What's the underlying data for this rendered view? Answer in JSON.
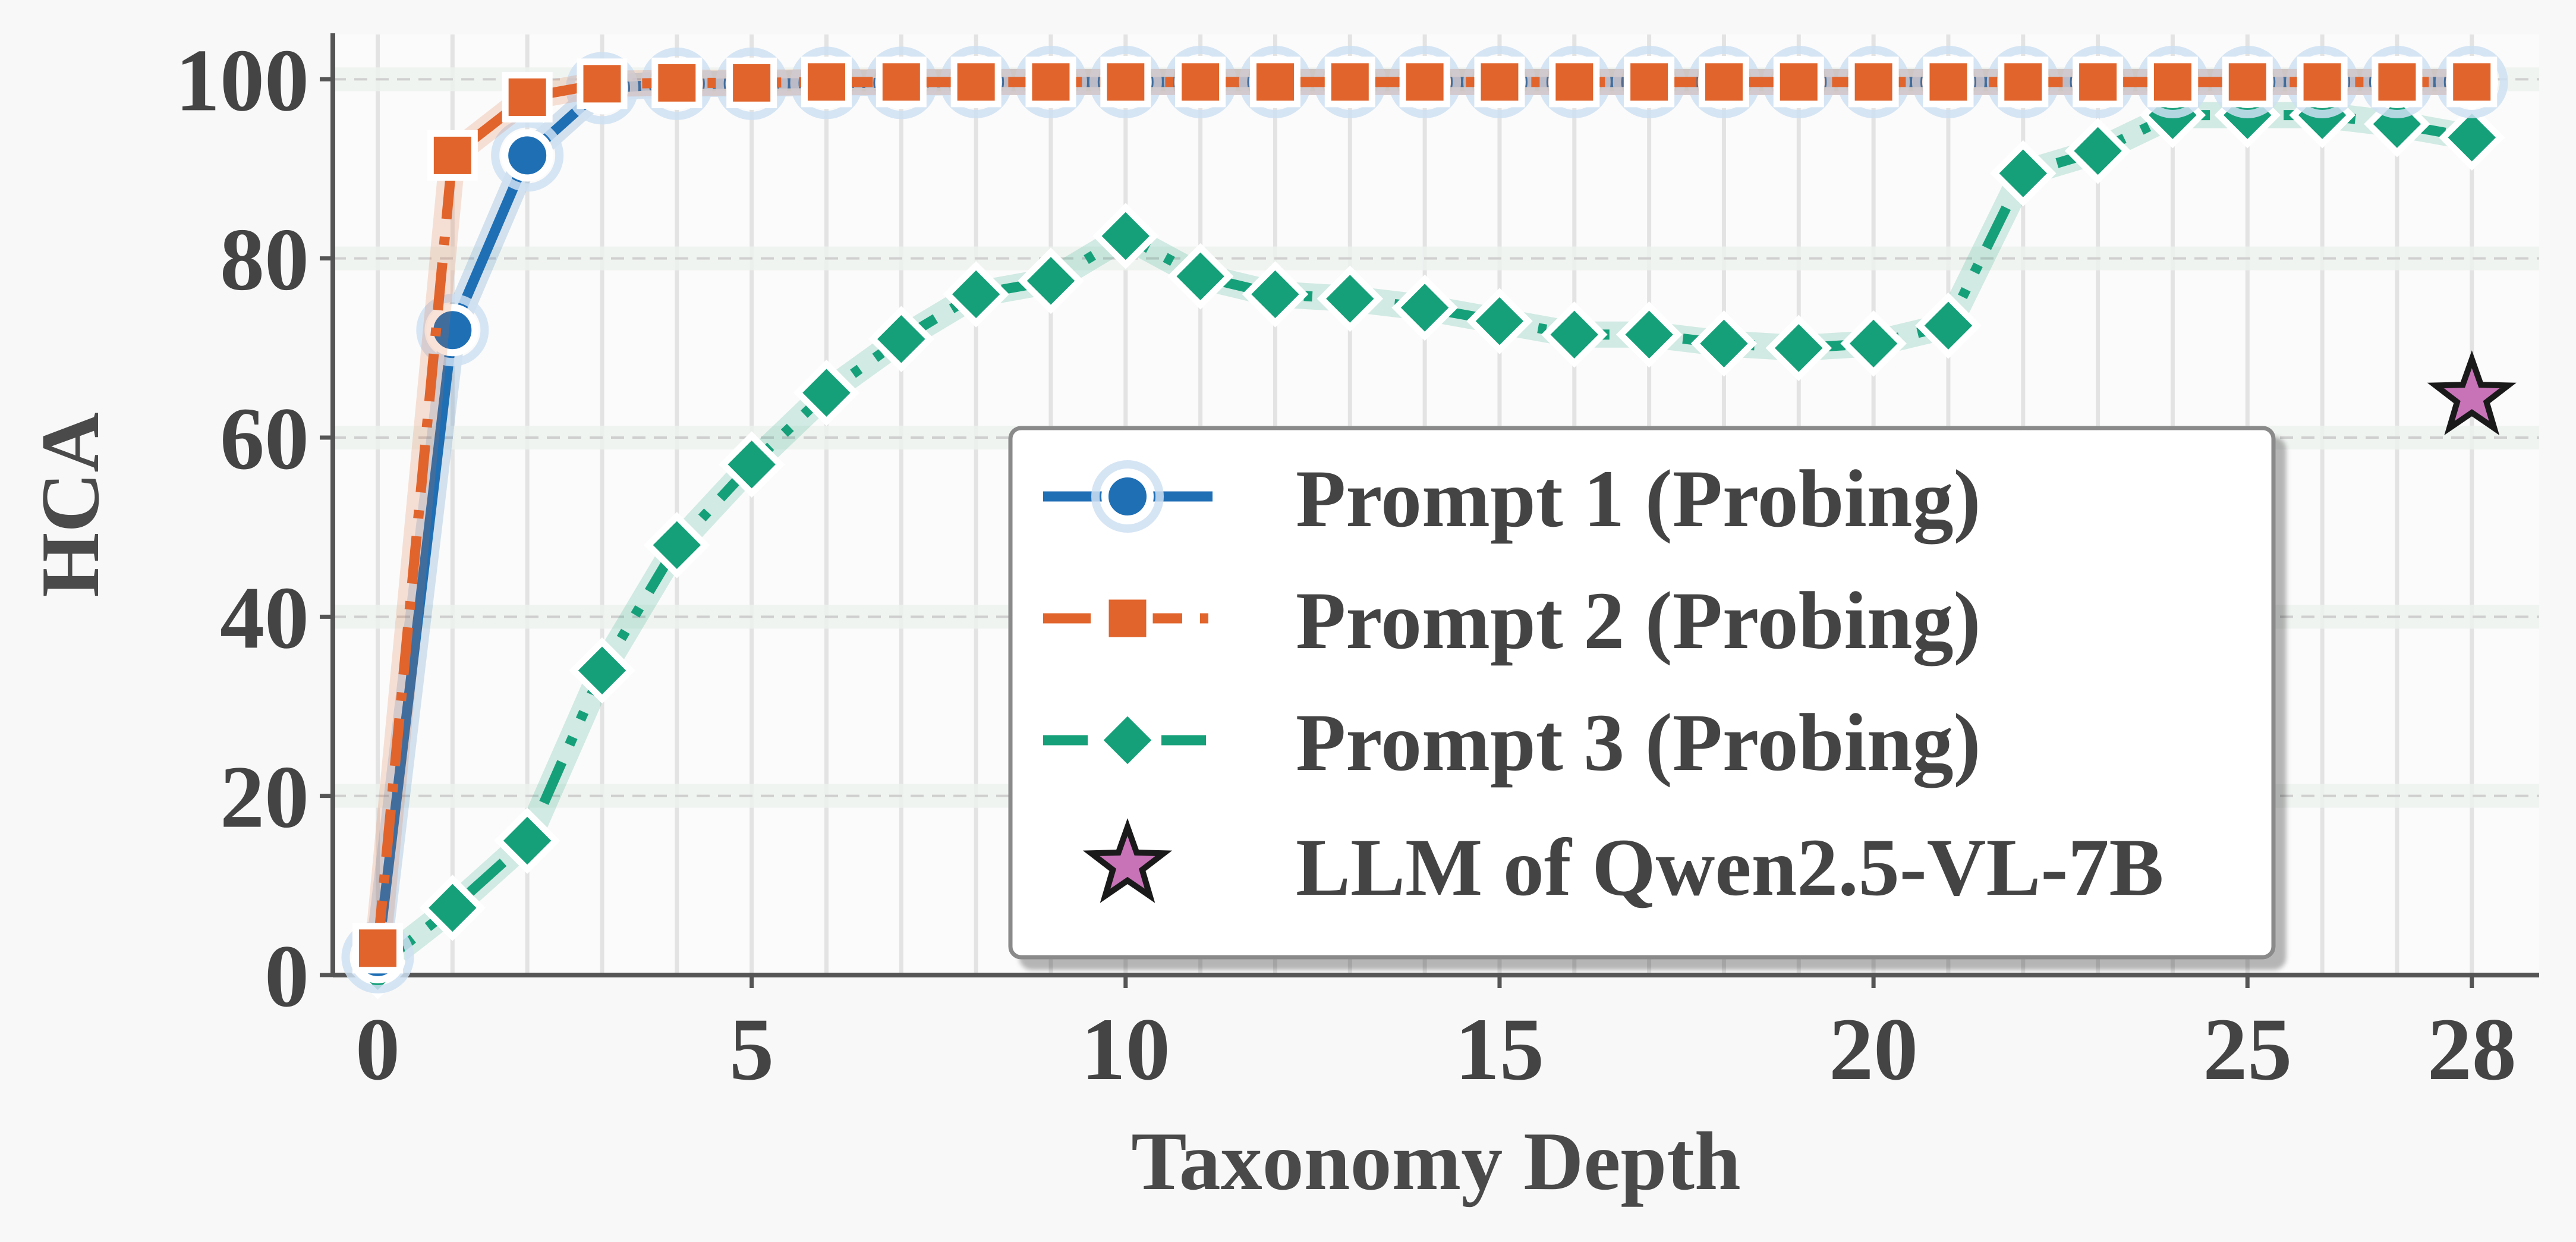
{
  "chart_data": {
    "type": "line",
    "xlabel": "Taxonomy Depth",
    "ylabel": "HCA",
    "xlim": [
      -0.6,
      28.9
    ],
    "ylim": [
      0,
      105
    ],
    "x_ticks": [
      0,
      5,
      10,
      15,
      20,
      25,
      28
    ],
    "x_tick_labels": [
      "0",
      "5",
      "10",
      "15",
      "20",
      "25",
      "28"
    ],
    "y_ticks": [
      0,
      20,
      40,
      60,
      80,
      100
    ],
    "y_tick_labels": [
      "0",
      "20",
      "40",
      "60",
      "80",
      "100"
    ],
    "grid": true,
    "legend_position": "center-right",
    "series": [
      {
        "name": "Prompt 1 (Probing)",
        "color": "#1f6fb5",
        "marker": "circle",
        "line_style": "solid",
        "x": [
          0,
          1,
          2,
          3,
          4,
          5,
          6,
          7,
          8,
          9,
          10,
          11,
          12,
          13,
          14,
          15,
          16,
          17,
          18,
          19,
          20,
          21,
          22,
          23,
          24,
          25,
          26,
          27,
          28
        ],
        "values": [
          2,
          72,
          91.5,
          99,
          99.5,
          99.5,
          99.6,
          99.6,
          99.7,
          99.7,
          99.7,
          99.7,
          99.7,
          99.7,
          99.7,
          99.7,
          99.7,
          99.7,
          99.7,
          99.7,
          99.7,
          99.7,
          99.7,
          99.7,
          99.7,
          99.7,
          99.7,
          99.7,
          99.7
        ]
      },
      {
        "name": "Prompt 2 (Probing)",
        "color": "#e0642b",
        "marker": "square",
        "line_style": "dashed",
        "x": [
          0,
          1,
          2,
          3,
          4,
          5,
          6,
          7,
          8,
          9,
          10,
          11,
          12,
          13,
          14,
          15,
          16,
          17,
          18,
          19,
          20,
          21,
          22,
          23,
          24,
          25,
          26,
          27,
          28
        ],
        "values": [
          3,
          91.5,
          98,
          99.5,
          99.6,
          99.6,
          99.7,
          99.7,
          99.7,
          99.7,
          99.7,
          99.7,
          99.7,
          99.7,
          99.7,
          99.7,
          99.7,
          99.7,
          99.7,
          99.7,
          99.7,
          99.7,
          99.7,
          99.7,
          99.7,
          99.7,
          99.7,
          99.7,
          99.7
        ]
      },
      {
        "name": "Prompt 3 (Probing)",
        "color": "#16a07a",
        "marker": "diamond",
        "line_style": "dashdot",
        "x": [
          0,
          1,
          2,
          3,
          4,
          5,
          6,
          7,
          8,
          9,
          10,
          11,
          12,
          13,
          14,
          15,
          16,
          17,
          18,
          19,
          20,
          21,
          22,
          23,
          24,
          25,
          26,
          27,
          28
        ],
        "values": [
          1,
          7.5,
          15,
          34,
          48,
          57,
          65,
          71,
          76,
          77.5,
          82.5,
          78,
          76,
          75.5,
          74.5,
          73,
          71.5,
          71.5,
          70.5,
          70,
          70.5,
          72.5,
          89.5,
          92,
          96,
          96,
          96,
          95,
          93.5
        ]
      },
      {
        "name": "LLM of Qwen2.5-VL-7B",
        "color": "#c873b8",
        "marker": "star",
        "line_style": "none",
        "x": [
          28
        ],
        "values": [
          64.5
        ]
      }
    ]
  }
}
